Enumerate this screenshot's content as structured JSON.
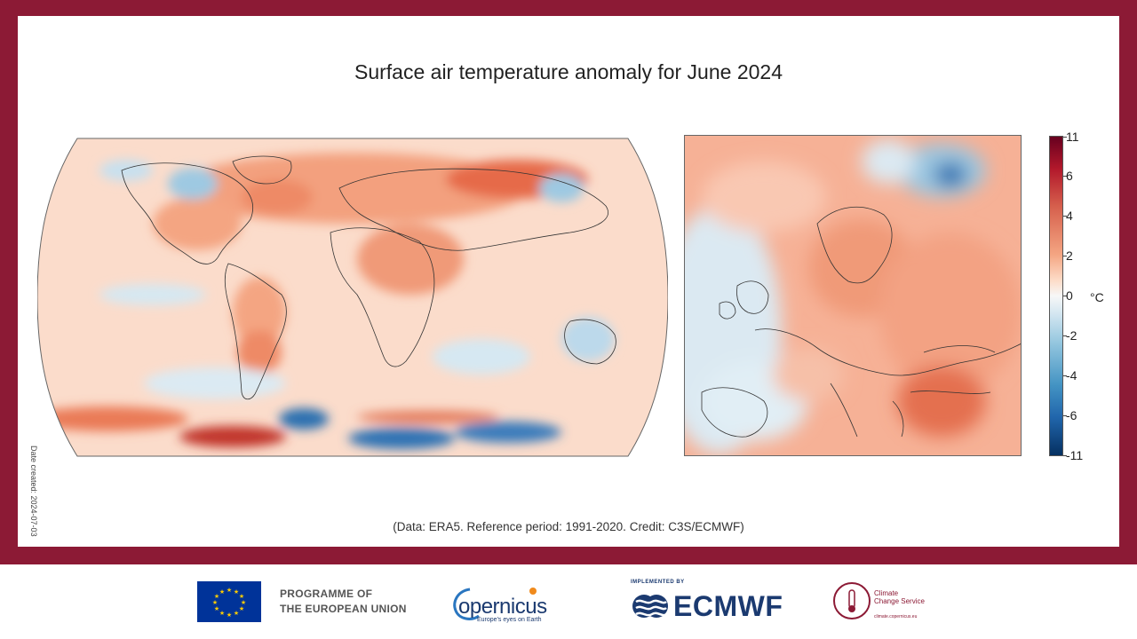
{
  "title": "Surface air temperature anomaly for June 2024",
  "credit": "(Data: ERA5. Reference period: 1991-2020. Credit: C3S/ECMWF)",
  "date_created": "Date created: 2024-07-03",
  "colorbar": {
    "unit": "°C",
    "ticks": [
      "11",
      "6",
      "4",
      "2",
      "0",
      "-2",
      "-4",
      "-6",
      "-11"
    ],
    "colors": [
      "#67001f",
      "#b2182b",
      "#d6604d",
      "#f4a582",
      "#fddbc7",
      "#f7f7f7",
      "#d1e5f0",
      "#92c5de",
      "#4393c3",
      "#2166ac",
      "#053061"
    ]
  },
  "maps": [
    {
      "region": "World",
      "projection": "Robinson"
    },
    {
      "region": "Europe",
      "projection": "regional"
    }
  ],
  "footer": {
    "programme": [
      "PROGRAMME OF",
      "THE EUROPEAN UNION"
    ],
    "copernicus": "opernicus",
    "copernicus_tagline": "Europe's eyes on Earth",
    "implemented_by": "IMPLEMENTED BY",
    "ecmwf": "ECMWF",
    "c3s": [
      "Climate",
      "Change Service"
    ],
    "c3s_url": "climate.copernicus.eu"
  }
}
